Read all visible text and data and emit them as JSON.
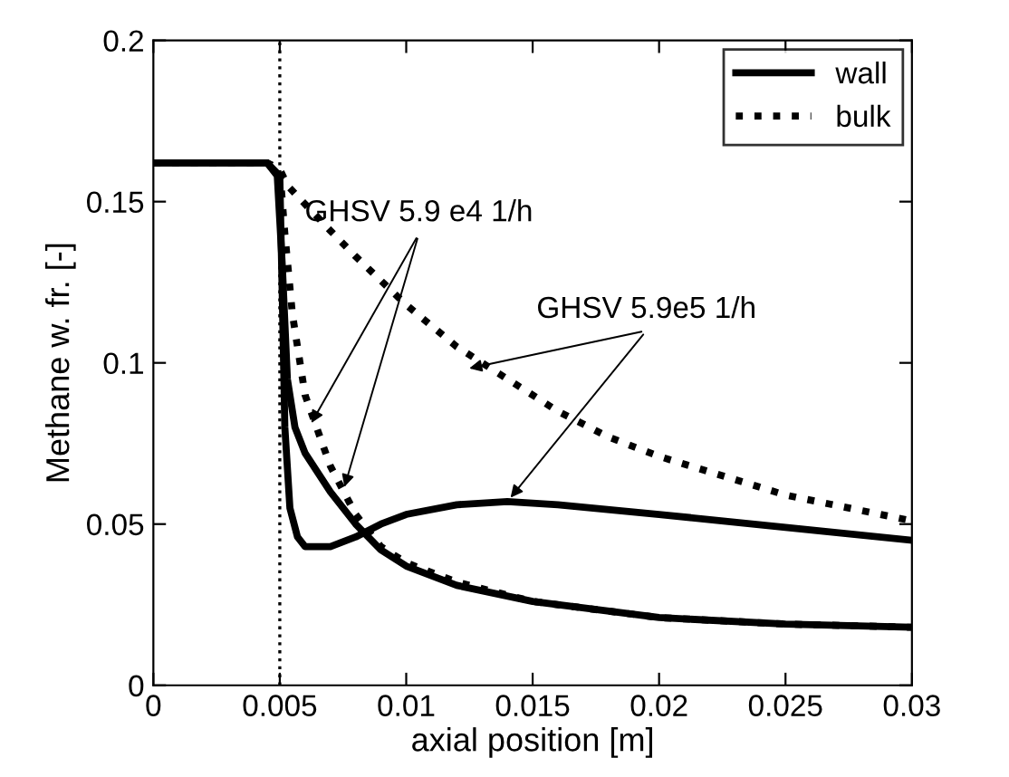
{
  "chart_data": {
    "type": "line",
    "xlabel": "axial position [m]",
    "ylabel": "Methane w. fr. [-]",
    "xlim": [
      0,
      0.03
    ],
    "ylim": [
      0,
      0.2
    ],
    "xticks": [
      0,
      0.005,
      0.01,
      0.015,
      0.02,
      0.025,
      0.03
    ],
    "yticks": [
      0,
      0.05,
      0.1,
      0.15,
      0.2
    ],
    "grid": false,
    "legend": "top right",
    "marker": "none",
    "ref_lines": [
      {
        "axis": "x",
        "value": 0.005,
        "line_style": "dotted",
        "color": "#000000"
      }
    ],
    "annotations": [
      {
        "text": "GHSV 5.9 e4 1/h",
        "x": 0.0075,
        "y": 0.06
      },
      {
        "text": "GHSV 5.9e5 1/h",
        "x": 0.014,
        "y": 0.057
      }
    ],
    "series": [
      {
        "name": "wall",
        "color": "#000000",
        "line_style": "solid",
        "x": [
          0,
          0.0045,
          0.0049,
          0.0051,
          0.0053,
          0.0056,
          0.006,
          0.007,
          0.008,
          0.009,
          0.01,
          0.012,
          0.015,
          0.02,
          0.025,
          0.03
        ],
        "values": [
          0.162,
          0.162,
          0.158,
          0.13,
          0.095,
          0.08,
          0.072,
          0.06,
          0.05,
          0.042,
          0.037,
          0.031,
          0.026,
          0.021,
          0.019,
          0.018
        ]
      },
      {
        "name": "bulk",
        "color": "#000000",
        "line_style": "dotted",
        "x": [
          0,
          0.0045,
          0.005,
          0.0052,
          0.0055,
          0.006,
          0.007,
          0.008,
          0.009,
          0.01,
          0.012,
          0.015,
          0.02,
          0.025,
          0.03
        ],
        "values": [
          0.162,
          0.162,
          0.16,
          0.14,
          0.115,
          0.09,
          0.068,
          0.053,
          0.043,
          0.038,
          0.032,
          0.026,
          0.021,
          0.019,
          0.018
        ]
      },
      {
        "color": "#000000",
        "line_style": "solid",
        "x": [
          0,
          0.0045,
          0.005,
          0.0051,
          0.0052,
          0.0054,
          0.0057,
          0.006,
          0.007,
          0.008,
          0.009,
          0.01,
          0.012,
          0.014,
          0.016,
          0.02,
          0.025,
          0.03
        ],
        "values": [
          0.162,
          0.162,
          0.158,
          0.12,
          0.08,
          0.055,
          0.046,
          0.043,
          0.043,
          0.046,
          0.05,
          0.053,
          0.056,
          0.057,
          0.056,
          0.053,
          0.049,
          0.045
        ]
      },
      {
        "color": "#000000",
        "line_style": "dotted",
        "x": [
          0,
          0.0045,
          0.005,
          0.0053,
          0.007,
          0.008,
          0.01,
          0.012,
          0.014,
          0.016,
          0.018,
          0.02,
          0.025,
          0.03
        ],
        "values": [
          0.162,
          0.162,
          0.16,
          0.155,
          0.141,
          0.133,
          0.118,
          0.105,
          0.095,
          0.085,
          0.077,
          0.071,
          0.059,
          0.051
        ]
      }
    ]
  }
}
